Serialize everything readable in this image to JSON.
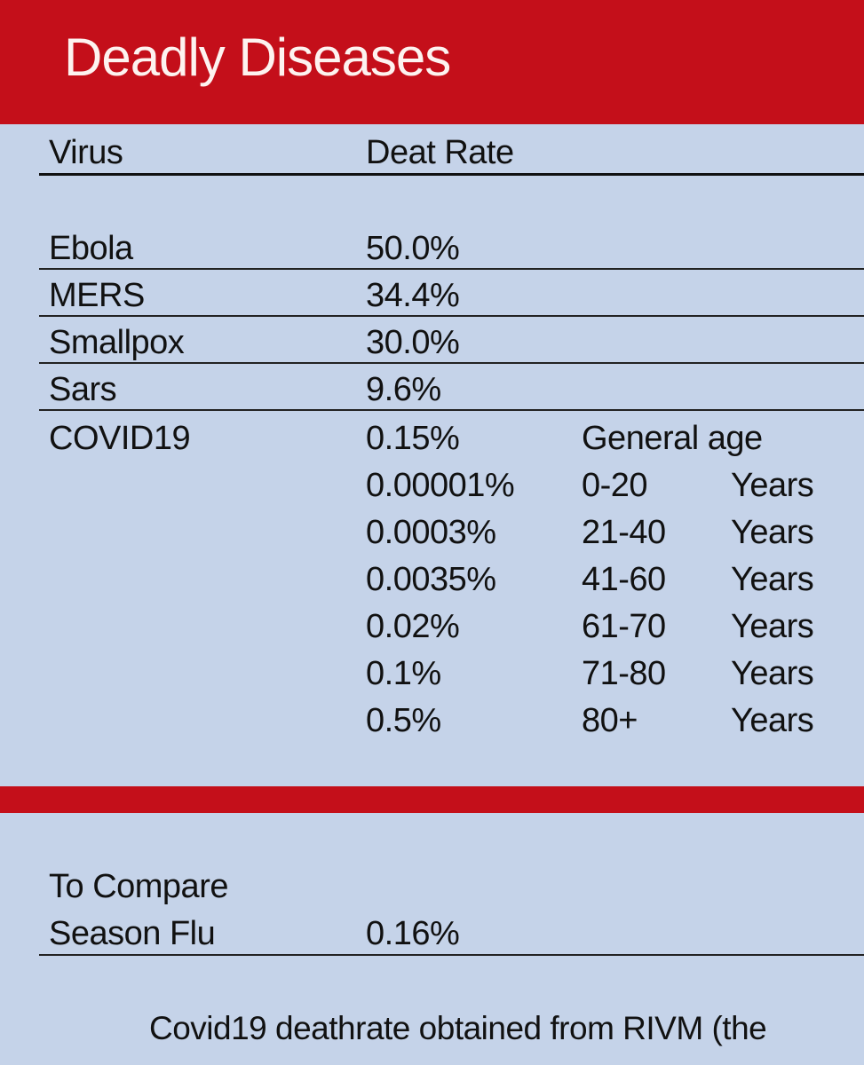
{
  "header": {
    "title": "Deadly Diseases"
  },
  "table": {
    "columns": {
      "virus": "Virus",
      "rate": "Deat Rate"
    },
    "rows": [
      {
        "virus": "Ebola",
        "rate": "50.0%"
      },
      {
        "virus": "MERS",
        "rate": "34.4%"
      },
      {
        "virus": "Smallpox",
        "rate": "30.0%"
      },
      {
        "virus": "Sars",
        "rate": "9.6%"
      },
      {
        "virus": "COVID19",
        "rate": "0.15%",
        "note": "General age"
      }
    ],
    "covid_age_breakdown": [
      {
        "rate": "0.00001%",
        "range": "0-20",
        "unit": "Years"
      },
      {
        "rate": "0.0003%",
        "range": "21-40",
        "unit": "Years"
      },
      {
        "rate": "0.0035%",
        "range": "41-60",
        "unit": "Years"
      },
      {
        "rate": "0.02%",
        "range": "61-70",
        "unit": "Years"
      },
      {
        "rate": "0.1%",
        "range": "71-80",
        "unit": "Years"
      },
      {
        "rate": "0.5%",
        "range": "80+",
        "unit": "Years"
      }
    ]
  },
  "comparison": {
    "heading": "To Compare",
    "label": "Season Flu",
    "rate": "0.16%"
  },
  "footnote": "Covid19 deathrate obtained from RIVM (the",
  "colors": {
    "accent_red": "#c40f1a",
    "background": "#c5d3e9"
  }
}
